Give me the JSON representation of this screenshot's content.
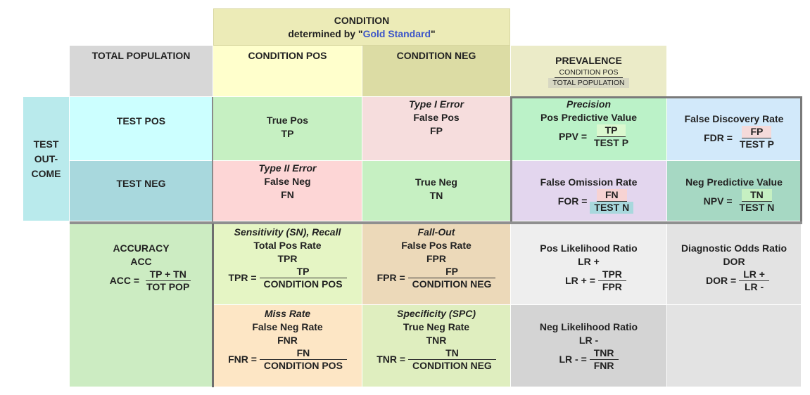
{
  "header": {
    "condition_line1": "CONDITION",
    "condition_prefix": "determined by \"",
    "condition_highlight": "Gold Standard",
    "condition_suffix": "\""
  },
  "top_row": {
    "total_population": "TOTAL POPULATION",
    "condition_pos": "CONDITION POS",
    "condition_neg": "CONDITION NEG",
    "prevalence": {
      "title": "PREVALENCE",
      "num": "CONDITION POS",
      "den": "TOTAL POPULATION"
    }
  },
  "test_outcome": {
    "line1": "TEST",
    "line2": "OUT-",
    "line3": "COME"
  },
  "test_pos": "TEST POS",
  "test_neg": "TEST NEG",
  "true_pos": {
    "line1": "True Pos",
    "line2": "TP"
  },
  "false_pos": {
    "error": "Type I Error",
    "line1": "False Pos",
    "line2": "FP"
  },
  "false_neg": {
    "error": "Type II Error",
    "line1": "False Neg",
    "line2": "FN"
  },
  "true_neg": {
    "line1": "True Neg",
    "line2": "TN"
  },
  "precision": {
    "title": "Precision",
    "name": "Pos Predictive Value",
    "lhs": "PPV =",
    "num": "TP",
    "den": "TEST P"
  },
  "fdr": {
    "name": "False Discovery Rate",
    "lhs": "FDR =",
    "num": "FP",
    "den": "TEST P"
  },
  "for": {
    "name": "False Omission Rate",
    "lhs": "FOR =",
    "num": "FN",
    "den": "TEST N"
  },
  "npv": {
    "name": "Neg Predictive Value",
    "lhs": "NPV =",
    "num": "TN",
    "den": "TEST N"
  },
  "accuracy": {
    "line1": "ACCURACY",
    "line2": "ACC",
    "lhs": "ACC =",
    "num": "TP + TN",
    "den": "TOT POP"
  },
  "sensitivity": {
    "title": "Sensitivity (SN), Recall",
    "name": "Total Pos Rate",
    "abbr": "TPR",
    "lhs": "TPR =",
    "num": "TP",
    "den": "CONDITION POS"
  },
  "fallout": {
    "title": "Fall-Out",
    "name": "False Pos Rate",
    "abbr": "FPR",
    "lhs": "FPR =",
    "num": "FP",
    "den": "CONDITION NEG"
  },
  "lr_pos": {
    "name": "Pos Likelihood Ratio",
    "abbr": "LR +",
    "lhs": "LR +  =",
    "num": "TPR",
    "den": "FPR"
  },
  "dor": {
    "name": "Diagnostic Odds Ratio",
    "abbr": "DOR",
    "lhs": "DOR =",
    "num": "LR +",
    "den": "LR -"
  },
  "miss_rate": {
    "title": "Miss Rate",
    "name": "False Neg Rate",
    "abbr": "FNR",
    "lhs": "FNR =",
    "num": "FN",
    "den": "CONDITION POS"
  },
  "specificity": {
    "title": "Specificity (SPC)",
    "name": "True Neg Rate",
    "abbr": "TNR",
    "lhs": "TNR =",
    "num": "TN",
    "den": "CONDITION NEG"
  },
  "lr_neg": {
    "name": "Neg Likelihood Ratio",
    "abbr": "LR -",
    "lhs": "LR - =",
    "num": "TNR",
    "den": "FNR"
  },
  "colors": {
    "condition_header": "#ecebb7",
    "total_pop": "#d7d7d7",
    "cond_pos": "#ffffcc",
    "cond_neg": "#dcdca4",
    "prevalence": "#ebebc8",
    "test_outcome": "#b9eaec",
    "test_pos": "#ccffff",
    "test_neg": "#a8d8dd",
    "true": "#c6f0c2",
    "false": "#f6dddd",
    "false_neg": "#fdd6d6",
    "ppv": "#bbf2c8",
    "fdr": "#d2e9fa",
    "for": "#e3d6ee",
    "npv": "#a6d8c3",
    "accuracy": "#ccecc2",
    "sensitivity": "#e5f5c4",
    "fallout": "#ecd9b9",
    "lr_pos": "#eeeeee",
    "dor": "#e3e3e3",
    "miss_rate": "#fde6c5",
    "specificity": "#dfeebf",
    "lr_neg": "#d4d4d4",
    "blank": "#e3e3e3"
  }
}
